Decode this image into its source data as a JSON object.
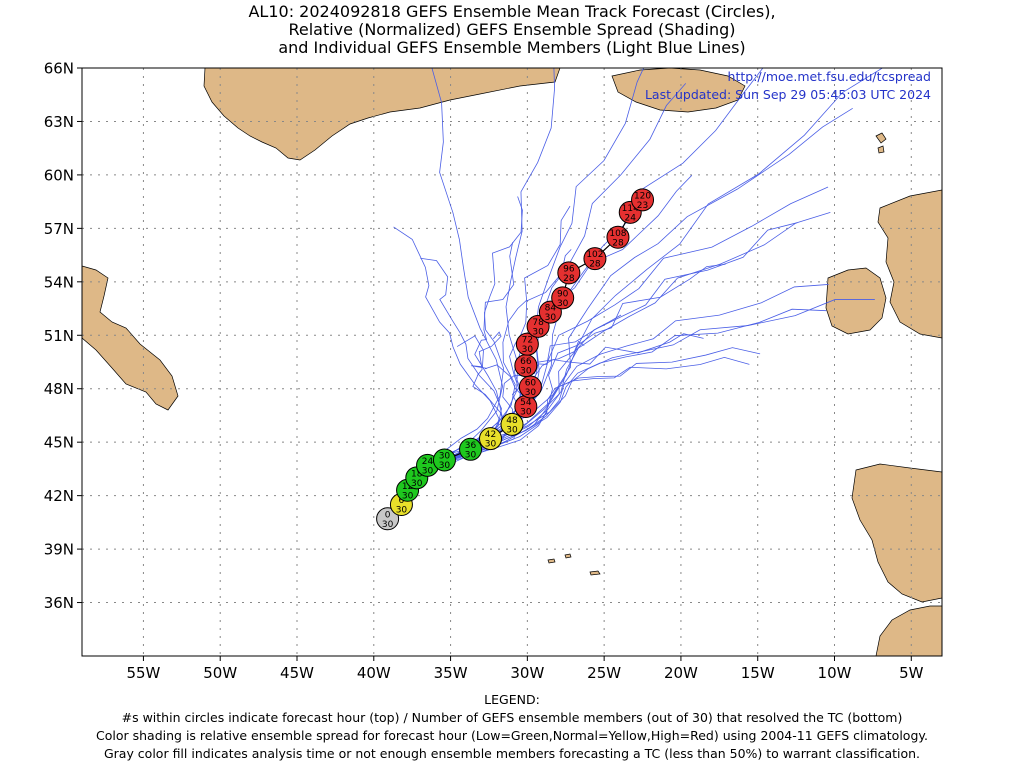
{
  "title": {
    "line1": "AL10: 2024092818 GEFS Ensemble Mean Track Forecast (Circles),",
    "line2": "Relative (Normalized) GEFS Ensemble Spread (Shading)",
    "line3": "and Individual GEFS Ensemble Members (Light Blue Lines)"
  },
  "credit": {
    "url": "http://moe.met.fsu.edu/tcspread",
    "updated": "Last updated: Sun Sep 29 05:45:03 UTC 2024"
  },
  "map": {
    "lon_range": [
      -59,
      -3
    ],
    "lat_range": [
      33,
      66
    ],
    "lat_ticks": [
      {
        "value": 66,
        "label": "66N"
      },
      {
        "value": 63,
        "label": "63N"
      },
      {
        "value": 60,
        "label": "60N"
      },
      {
        "value": 57,
        "label": "57N"
      },
      {
        "value": 54,
        "label": "54N"
      },
      {
        "value": 51,
        "label": "51N"
      },
      {
        "value": 48,
        "label": "48N"
      },
      {
        "value": 45,
        "label": "45N"
      },
      {
        "value": 42,
        "label": "42N"
      },
      {
        "value": 39,
        "label": "39N"
      },
      {
        "value": 36,
        "label": "36N"
      }
    ],
    "lon_ticks": [
      {
        "value": -55,
        "label": "55W"
      },
      {
        "value": -50,
        "label": "50W"
      },
      {
        "value": -45,
        "label": "45W"
      },
      {
        "value": -40,
        "label": "40W"
      },
      {
        "value": -35,
        "label": "35W"
      },
      {
        "value": -30,
        "label": "30W"
      },
      {
        "value": -25,
        "label": "25W"
      },
      {
        "value": -20,
        "label": "20W"
      },
      {
        "value": -15,
        "label": "15W"
      },
      {
        "value": -10,
        "label": "10W"
      },
      {
        "value": -5,
        "label": "5W"
      }
    ],
    "colors": {
      "land": "#deb887",
      "member_track": "#4a5ee6",
      "spread_gray": "#c8c8c8",
      "spread_green": "#1ec81e",
      "spread_yellow": "#e8e02a",
      "spread_red": "#e53030",
      "gridline": "#888888"
    },
    "mean_track": [
      {
        "hour": "0",
        "members": "30",
        "lon": -39.1,
        "lat": 40.7,
        "spread": "gray"
      },
      {
        "hour": "6",
        "members": "30",
        "lon": -38.2,
        "lat": 41.5,
        "spread": "yellow"
      },
      {
        "hour": "12",
        "members": "30",
        "lon": -37.8,
        "lat": 42.3,
        "spread": "green"
      },
      {
        "hour": "18",
        "members": "30",
        "lon": -37.2,
        "lat": 43.0,
        "spread": "green"
      },
      {
        "hour": "24",
        "members": "30",
        "lon": -36.5,
        "lat": 43.7,
        "spread": "green"
      },
      {
        "hour": "30",
        "members": "30",
        "lon": -35.4,
        "lat": 44.0,
        "spread": "green"
      },
      {
        "hour": "36",
        "members": "30",
        "lon": -33.7,
        "lat": 44.6,
        "spread": "green"
      },
      {
        "hour": "42",
        "members": "30",
        "lon": -32.4,
        "lat": 45.2,
        "spread": "yellow"
      },
      {
        "hour": "48",
        "members": "30",
        "lon": -31.0,
        "lat": 46.0,
        "spread": "yellow"
      },
      {
        "hour": "54",
        "members": "30",
        "lon": -30.1,
        "lat": 47.0,
        "spread": "red"
      },
      {
        "hour": "60",
        "members": "30",
        "lon": -29.8,
        "lat": 48.1,
        "spread": "red"
      },
      {
        "hour": "66",
        "members": "30",
        "lon": -30.1,
        "lat": 49.3,
        "spread": "red"
      },
      {
        "hour": "72",
        "members": "30",
        "lon": -30.0,
        "lat": 50.5,
        "spread": "red"
      },
      {
        "hour": "78",
        "members": "30",
        "lon": -29.3,
        "lat": 51.5,
        "spread": "red"
      },
      {
        "hour": "84",
        "members": "30",
        "lon": -28.5,
        "lat": 52.3,
        "spread": "red"
      },
      {
        "hour": "90",
        "members": "30",
        "lon": -27.7,
        "lat": 53.1,
        "spread": "red"
      },
      {
        "hour": "96",
        "members": "28",
        "lon": -27.3,
        "lat": 54.5,
        "spread": "red"
      },
      {
        "hour": "102",
        "members": "28",
        "lon": -25.6,
        "lat": 55.3,
        "spread": "red"
      },
      {
        "hour": "108",
        "members": "28",
        "lon": -24.1,
        "lat": 56.5,
        "spread": "red"
      },
      {
        "hour": "114",
        "members": "24",
        "lon": -23.3,
        "lat": 57.9,
        "spread": "red"
      },
      {
        "hour": "120",
        "members": "23",
        "lon": -22.5,
        "lat": 58.6,
        "spread": "red"
      }
    ]
  },
  "legend": {
    "heading": "LEGEND:",
    "line1": "#s within circles indicate forecast hour (top) / Number of GEFS ensemble members (out of 30) that resolved the TC (bottom)",
    "line2": "Color shading is relative ensemble spread for forecast hour (Low=Green,Normal=Yellow,High=Red) using 2004-11 GEFS climatology.",
    "line3": "Gray color fill indicates analysis time or not enough ensemble members forecasting a TC (less than 50%) to warrant classification."
  }
}
